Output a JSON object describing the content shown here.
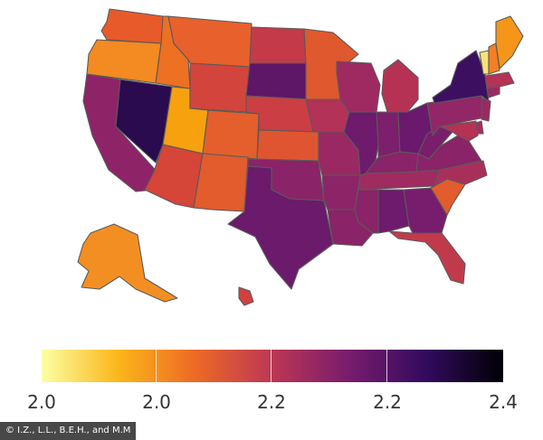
{
  "colorbar": {
    "ticks": [
      "2.0",
      "2.0",
      "2.2",
      "2.2",
      "2.4"
    ],
    "stops": [
      "#fcffa4",
      "#fbb61a",
      "#ed6925",
      "#bc3754",
      "#781c6d",
      "#320a5e",
      "#000004"
    ]
  },
  "regions": [
    {
      "name": "Washington",
      "color": "#e85a2a"
    },
    {
      "name": "Oregon",
      "color": "#f38a22"
    },
    {
      "name": "California",
      "color": "#8f2368"
    },
    {
      "name": "Nevada",
      "color": "#2a0b4f"
    },
    {
      "name": "Idaho",
      "color": "#ed7023"
    },
    {
      "name": "Utah",
      "color": "#f7a10f"
    },
    {
      "name": "Arizona",
      "color": "#d54538"
    },
    {
      "name": "Montana",
      "color": "#e8602b"
    },
    {
      "name": "Wyoming",
      "color": "#d3453c"
    },
    {
      "name": "Colorado",
      "color": "#e45f2c"
    },
    {
      "name": "New Mexico",
      "color": "#e25c2d"
    },
    {
      "name": "North Dakota",
      "color": "#c43a48"
    },
    {
      "name": "South Dakota",
      "color": "#5e1666"
    },
    {
      "name": "Nebraska",
      "color": "#cb3e44"
    },
    {
      "name": "Kansas",
      "color": "#e05531"
    },
    {
      "name": "Oklahoma",
      "color": "#8a2368"
    },
    {
      "name": "Texas",
      "color": "#6b1a6c"
    },
    {
      "name": "Minnesota",
      "color": "#e0582e"
    },
    {
      "name": "Iowa",
      "color": "#b23357"
    },
    {
      "name": "Missouri",
      "color": "#9a2863"
    },
    {
      "name": "Arkansas",
      "color": "#8d2467"
    },
    {
      "name": "Louisiana",
      "color": "#8a2368"
    },
    {
      "name": "Wisconsin",
      "color": "#9e2a61"
    },
    {
      "name": "Illinois",
      "color": "#6e1a6d"
    },
    {
      "name": "Michigan",
      "color": "#b53254"
    },
    {
      "name": "Indiana",
      "color": "#7c1f6c"
    },
    {
      "name": "Ohio",
      "color": "#6a196c"
    },
    {
      "name": "Kentucky",
      "color": "#8a2368"
    },
    {
      "name": "Tennessee",
      "color": "#a02b60"
    },
    {
      "name": "Mississippi",
      "color": "#8a2368"
    },
    {
      "name": "Alabama",
      "color": "#6e1a6d"
    },
    {
      "name": "Georgia",
      "color": "#781c6d"
    },
    {
      "name": "Florida",
      "color": "#c13a4c"
    },
    {
      "name": "South Carolina",
      "color": "#e25c2d"
    },
    {
      "name": "North Carolina",
      "color": "#a92f5b"
    },
    {
      "name": "Virginia",
      "color": "#8a2368"
    },
    {
      "name": "West Virginia",
      "color": "#7a1e6c"
    },
    {
      "name": "Pennsylvania",
      "color": "#932666"
    },
    {
      "name": "New York",
      "color": "#3c0f61"
    },
    {
      "name": "New Jersey",
      "color": "#9c2962"
    },
    {
      "name": "Delaware",
      "color": "#a82e5c"
    },
    {
      "name": "Maryland",
      "color": "#b53254"
    },
    {
      "name": "Connecticut",
      "color": "#9c2962"
    },
    {
      "name": "Massachusetts",
      "color": "#b53254"
    },
    {
      "name": "Vermont",
      "color": "#fbe276"
    },
    {
      "name": "New Hampshire",
      "color": "#f47f24"
    },
    {
      "name": "Maine",
      "color": "#f5961b"
    },
    {
      "name": "Alaska",
      "color": "#f38f22"
    },
    {
      "name": "Hawaii",
      "color": "#cf4240"
    }
  ],
  "credit": "© I.Z., L.L., B.E.H., and M.M"
}
